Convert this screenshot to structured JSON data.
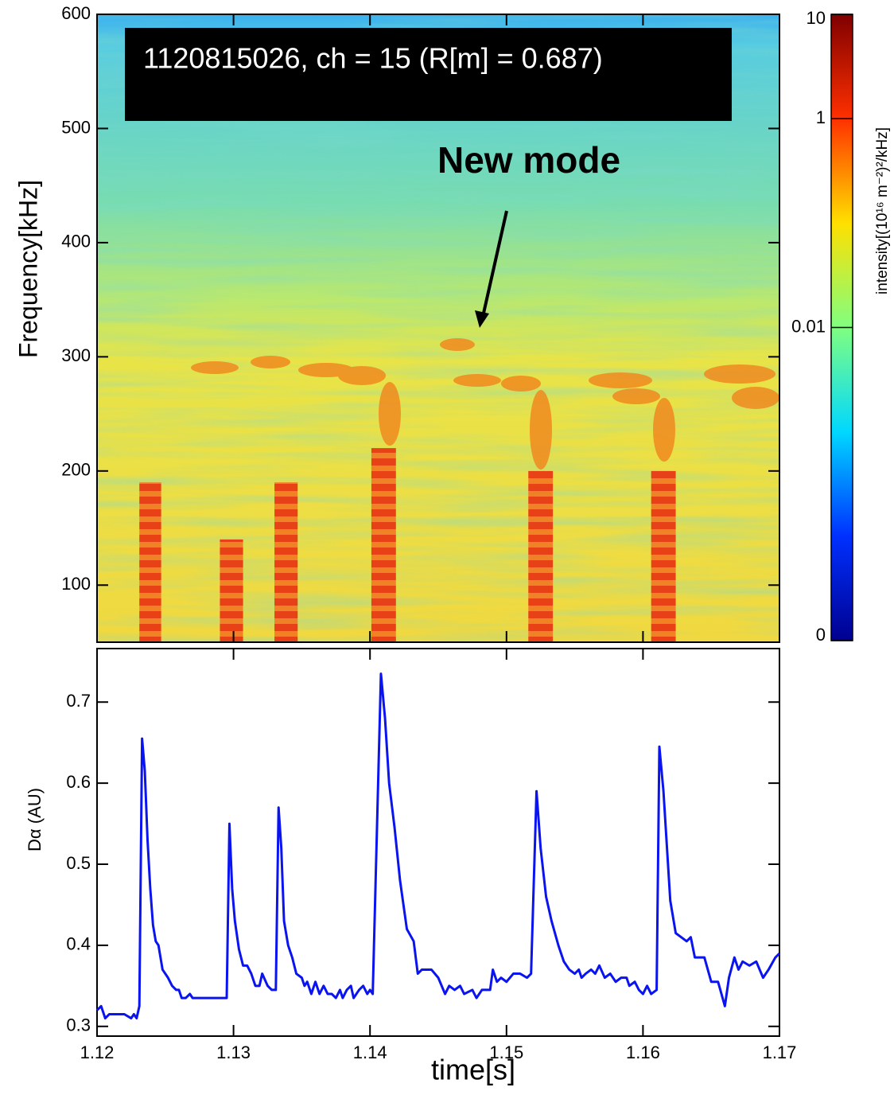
{
  "chart_data": [
    {
      "type": "spectrogram",
      "annotation": "1120815026, ch = 15 (R[m] = 0.687)",
      "callout": "New mode",
      "ylabel": "Frequency[kHz]",
      "xlim": [
        1.12,
        1.17
      ],
      "xticks": [
        1.12,
        1.13,
        1.14,
        1.15,
        1.16,
        1.17
      ],
      "ylim": [
        50,
        600
      ],
      "yticks": [
        100,
        200,
        300,
        400,
        500,
        600
      ],
      "bursts": [
        {
          "t": [
            1.1231,
            1.1247
          ],
          "f": 190
        },
        {
          "t": [
            1.129,
            1.1307
          ],
          "f": 140
        },
        {
          "t": [
            1.133,
            1.1347
          ],
          "f": 190
        },
        {
          "t": [
            1.1401,
            1.1419
          ],
          "f": 220
        },
        {
          "t": [
            1.1516,
            1.1534
          ],
          "f": 200
        },
        {
          "t": [
            1.1606,
            1.1624
          ],
          "f": 200
        }
      ],
      "colorbar": {
        "label": "intensity[(10¹⁶ m⁻²)²/kHz]",
        "log": true,
        "lim": [
          1e-05,
          10
        ],
        "ticks": [
          10,
          1,
          0.01,
          {
            "value": 1e-05,
            "label": "0"
          }
        ],
        "colormap": [
          "#00008f",
          "#0030ff",
          "#00d8ff",
          "#80ff80",
          "#ffe000",
          "#ff3000",
          "#800000"
        ]
      }
    },
    {
      "type": "line",
      "ylabel": "Dα (AU)",
      "xlabel": "time[s]",
      "color": "#0a14f0",
      "xlim": [
        1.12,
        1.17
      ],
      "xticks": [
        1.12,
        1.13,
        1.14,
        1.15,
        1.16,
        1.17
      ],
      "ylim": [
        0.288,
        0.766
      ],
      "yticks": [
        0.3,
        0.4,
        0.5,
        0.6,
        0.7
      ],
      "x": [
        1.12,
        1.1203,
        1.1206,
        1.1209,
        1.1215,
        1.122,
        1.1225,
        1.1227,
        1.1229,
        1.1231,
        1.1233,
        1.1235,
        1.1237,
        1.1239,
        1.1241,
        1.1243,
        1.1245,
        1.1248,
        1.1252,
        1.1255,
        1.1258,
        1.126,
        1.1262,
        1.1265,
        1.1268,
        1.127,
        1.128,
        1.1295,
        1.1297,
        1.1299,
        1.1301,
        1.1304,
        1.1307,
        1.131,
        1.1313,
        1.1316,
        1.1319,
        1.1321,
        1.1325,
        1.1328,
        1.1331,
        1.1333,
        1.1335,
        1.1337,
        1.134,
        1.1343,
        1.1346,
        1.135,
        1.1352,
        1.1354,
        1.1357,
        1.136,
        1.1363,
        1.1366,
        1.1369,
        1.1372,
        1.1375,
        1.1378,
        1.138,
        1.1383,
        1.1386,
        1.1388,
        1.1392,
        1.1395,
        1.1398,
        1.14,
        1.1402,
        1.1408,
        1.1411,
        1.1414,
        1.1418,
        1.1422,
        1.1427,
        1.1432,
        1.1435,
        1.1438,
        1.1445,
        1.145,
        1.1455,
        1.1458,
        1.1462,
        1.1466,
        1.1469,
        1.1475,
        1.1478,
        1.1482,
        1.1488,
        1.149,
        1.1493,
        1.1496,
        1.15,
        1.1505,
        1.151,
        1.1515,
        1.1518,
        1.1522,
        1.1525,
        1.1529,
        1.1533,
        1.1538,
        1.1542,
        1.1546,
        1.155,
        1.1553,
        1.1555,
        1.1558,
        1.1562,
        1.1565,
        1.1568,
        1.1572,
        1.1576,
        1.158,
        1.1584,
        1.1588,
        1.159,
        1.1594,
        1.1597,
        1.16,
        1.1603,
        1.1606,
        1.161,
        1.1612,
        1.1615,
        1.162,
        1.1624,
        1.1628,
        1.1632,
        1.1635,
        1.1638,
        1.1645,
        1.165,
        1.1655,
        1.166,
        1.1663,
        1.1667,
        1.167,
        1.1673,
        1.1678,
        1.1683,
        1.1688,
        1.1692,
        1.1697,
        1.17
      ],
      "values": [
        0.32,
        0.325,
        0.31,
        0.315,
        0.315,
        0.315,
        0.31,
        0.315,
        0.31,
        0.325,
        0.655,
        0.615,
        0.53,
        0.47,
        0.425,
        0.405,
        0.4,
        0.37,
        0.36,
        0.35,
        0.345,
        0.345,
        0.335,
        0.335,
        0.34,
        0.335,
        0.335,
        0.335,
        0.55,
        0.47,
        0.43,
        0.395,
        0.375,
        0.375,
        0.365,
        0.35,
        0.35,
        0.365,
        0.35,
        0.345,
        0.345,
        0.57,
        0.52,
        0.43,
        0.4,
        0.385,
        0.365,
        0.36,
        0.35,
        0.355,
        0.34,
        0.355,
        0.34,
        0.35,
        0.34,
        0.34,
        0.335,
        0.345,
        0.335,
        0.345,
        0.35,
        0.335,
        0.345,
        0.35,
        0.34,
        0.345,
        0.34,
        0.735,
        0.68,
        0.6,
        0.545,
        0.48,
        0.42,
        0.405,
        0.365,
        0.37,
        0.37,
        0.36,
        0.34,
        0.35,
        0.345,
        0.35,
        0.34,
        0.345,
        0.335,
        0.345,
        0.345,
        0.37,
        0.355,
        0.36,
        0.355,
        0.365,
        0.365,
        0.36,
        0.365,
        0.59,
        0.52,
        0.46,
        0.43,
        0.4,
        0.38,
        0.37,
        0.365,
        0.37,
        0.36,
        0.365,
        0.37,
        0.365,
        0.375,
        0.36,
        0.365,
        0.355,
        0.36,
        0.36,
        0.35,
        0.355,
        0.345,
        0.34,
        0.35,
        0.34,
        0.345,
        0.645,
        0.59,
        0.455,
        0.415,
        0.41,
        0.405,
        0.41,
        0.385,
        0.385,
        0.355,
        0.355,
        0.325,
        0.36,
        0.385,
        0.37,
        0.38,
        0.375,
        0.38,
        0.36,
        0.37,
        0.385,
        0.39
      ]
    }
  ]
}
